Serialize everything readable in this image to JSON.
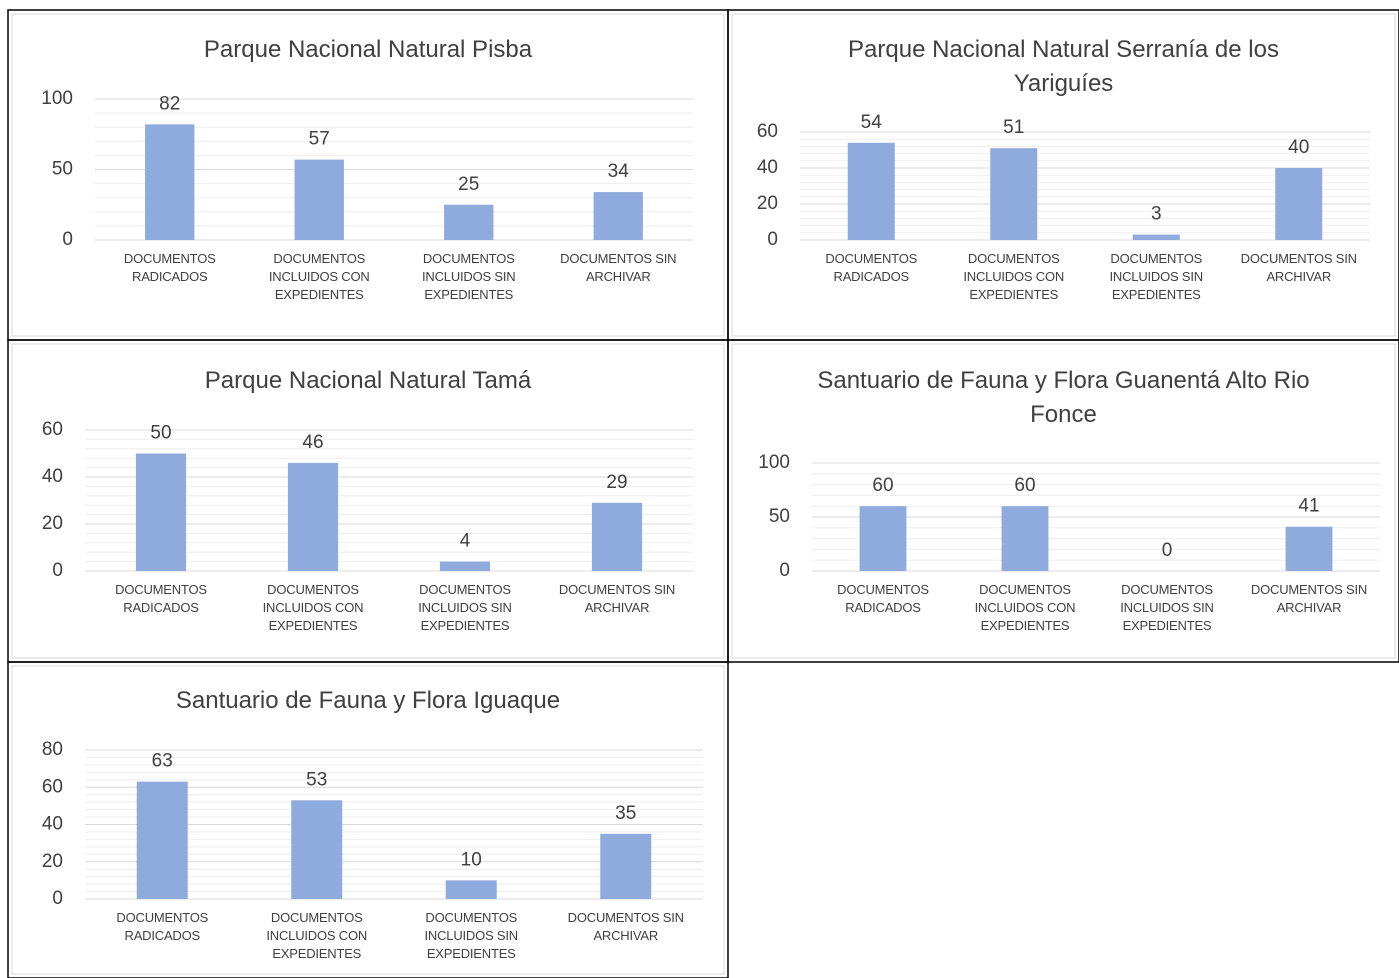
{
  "chart_data": [
    {
      "type": "bar",
      "title": "Parque Nacional Natural Pisba",
      "categories": [
        "DOCUMENTOS RADICADOS",
        "DOCUMENTOS INCLUIDOS CON EXPEDIENTES",
        "DOCUMENTOS INCLUIDOS SIN EXPEDIENTES",
        "DOCUMENTOS SIN ARCHIVAR"
      ],
      "values": [
        82,
        57,
        25,
        34
      ],
      "color": "#8faadc",
      "ylim": [
        0,
        100
      ],
      "yticks": [
        0,
        50,
        100
      ],
      "grid": true,
      "minor_grid": true
    },
    {
      "type": "bar",
      "title": "Parque Nacional Natural Serranía de los Yariguíes",
      "categories": [
        "DOCUMENTOS RADICADOS",
        "DOCUMENTOS INCLUIDOS CON EXPEDIENTES",
        "DOCUMENTOS INCLUIDOS SIN EXPEDIENTES",
        "DOCUMENTOS SIN ARCHIVAR"
      ],
      "values": [
        54,
        51,
        3,
        40
      ],
      "color": "#8faadc",
      "ylim": [
        0,
        60
      ],
      "yticks": [
        0,
        20,
        40,
        60
      ],
      "grid": true,
      "minor_grid": true
    },
    {
      "type": "bar",
      "title": "Parque Nacional Natural Tamá",
      "categories": [
        "DOCUMENTOS RADICADOS",
        "DOCUMENTOS INCLUIDOS CON EXPEDIENTES",
        "DOCUMENTOS INCLUIDOS SIN EXPEDIENTES",
        "DOCUMENTOS SIN ARCHIVAR"
      ],
      "values": [
        50,
        46,
        4,
        29
      ],
      "color": "#8faadc",
      "ylim": [
        0,
        60
      ],
      "yticks": [
        0,
        20,
        40,
        60
      ],
      "grid": true,
      "minor_grid": true
    },
    {
      "type": "bar",
      "title": "Santuario de Fauna y Flora Guanentá Alto Rio Fonce",
      "categories": [
        "DOCUMENTOS RADICADOS",
        "DOCUMENTOS INCLUIDOS CON EXPEDIENTES",
        "DOCUMENTOS INCLUIDOS SIN EXPEDIENTES",
        "DOCUMENTOS SIN ARCHIVAR"
      ],
      "values": [
        60,
        60,
        0,
        41
      ],
      "color": "#8faadc",
      "ylim": [
        0,
        100
      ],
      "yticks": [
        0,
        50,
        100
      ],
      "grid": true,
      "minor_grid": true
    },
    {
      "type": "bar",
      "title": "Santuario de Fauna y Flora Iguaque",
      "categories": [
        "DOCUMENTOS RADICADOS",
        "DOCUMENTOS INCLUIDOS CON EXPEDIENTES",
        "DOCUMENTOS INCLUIDOS SIN EXPEDIENTES",
        "DOCUMENTOS SIN ARCHIVAR"
      ],
      "values": [
        63,
        53,
        10,
        35
      ],
      "color": "#8faadc",
      "ylim": [
        0,
        80
      ],
      "yticks": [
        0,
        20,
        40,
        60,
        80
      ],
      "grid": true,
      "minor_grid": true
    }
  ]
}
